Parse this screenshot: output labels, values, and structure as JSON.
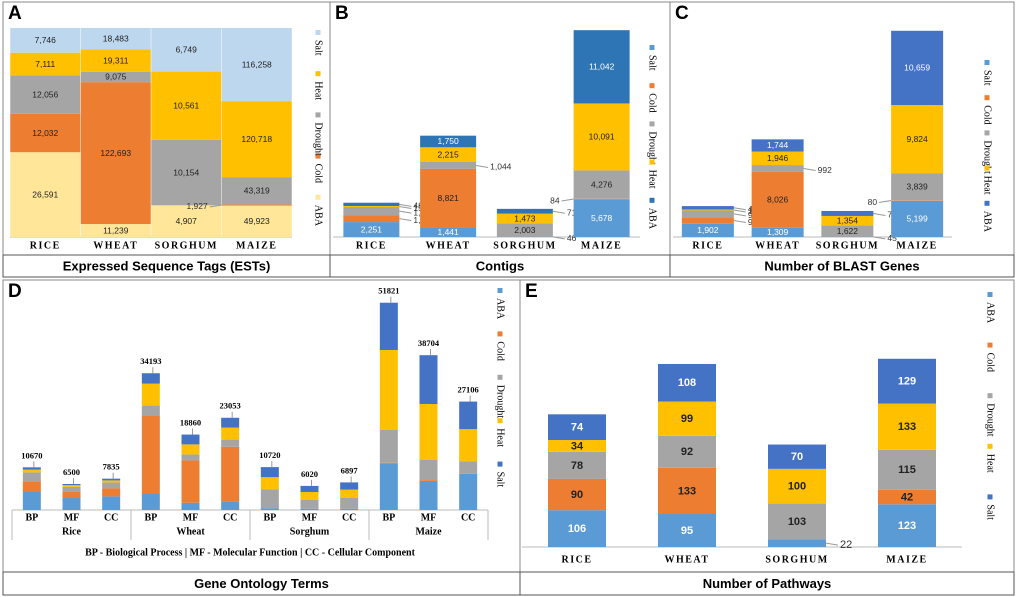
{
  "chart_data": [
    {
      "panel": "A",
      "type": "bar",
      "stacking": "percent",
      "title": "Expressed Sequence Tags (ESTs)",
      "categories": [
        "RICE",
        "WHEAT",
        "SORGHUM",
        "MAIZE"
      ],
      "ylim": [
        0,
        100
      ],
      "series": [
        {
          "name": "ABA",
          "color": "#ffe699",
          "values": [
            26591,
            11239,
            4907,
            49923
          ],
          "value_labels": [
            "26,591",
            "11,239",
            "4,907",
            "49,923"
          ]
        },
        {
          "name": "Cold",
          "color": "#ed7d31",
          "values": [
            12032,
            122693,
            null,
            1927
          ],
          "value_labels": [
            "12,032",
            "122,693",
            null,
            "1,927"
          ]
        },
        {
          "name": "Drought",
          "color": "#a5a5a5",
          "values": [
            12056,
            9075,
            10154,
            43319
          ],
          "value_labels": [
            "12,056",
            "9,075",
            "10,154",
            "43,319"
          ]
        },
        {
          "name": "Heat",
          "color": "#ffc000",
          "values": [
            7111,
            19311,
            10561,
            120718
          ],
          "value_labels": [
            "7,111",
            "19,311",
            "10,561",
            "120,718"
          ]
        },
        {
          "name": "Salt",
          "color": "#bdd7ee",
          "values": [
            7746,
            18483,
            6749,
            116258
          ],
          "value_labels": [
            "7,746",
            "18,483",
            "6,749",
            "116,258"
          ]
        }
      ]
    },
    {
      "panel": "B",
      "type": "bar",
      "stacking": "normal",
      "title": "Contigs",
      "categories": [
        "RICE",
        "WHEAT",
        "SORGHUM",
        "MAIZE"
      ],
      "ylim": [
        0,
        31500
      ],
      "series": [
        {
          "name": "Salt",
          "color": "#5b9bd5",
          "values": [
            2251,
            1441,
            46,
            5678
          ],
          "value_labels": [
            "2,251",
            "1,441",
            "46",
            "5,678"
          ]
        },
        {
          "name": "Cold",
          "color": "#ed7d31",
          "values": [
            1045,
            8821,
            null,
            84
          ],
          "value_labels": [
            "1,045",
            "8,821",
            null,
            "84"
          ]
        },
        {
          "name": "Drought",
          "color": "#a5a5a5",
          "values": [
            1220,
            1044,
            2003,
            4276
          ],
          "value_labels": [
            "1,220",
            "1,044",
            "2,003",
            "4,276"
          ]
        },
        {
          "name": "Heat",
          "color": "#ffc000",
          "values": [
            159,
            2215,
            1473,
            10091
          ],
          "value_labels": [
            "159",
            "2,215",
            "1,473",
            "10,091"
          ]
        },
        {
          "name": "ABA",
          "color": "#2e75b6",
          "values": [
            489,
            1750,
            718,
            11042
          ],
          "value_labels": [
            "489",
            "1,750",
            "718",
            "11,042"
          ]
        }
      ]
    },
    {
      "panel": "C",
      "type": "bar",
      "stacking": "normal",
      "title": "Number of BLAST Genes",
      "categories": [
        "RICE",
        "WHEAT",
        "SORGHUM",
        "MAIZE"
      ],
      "ylim": [
        0,
        30000
      ],
      "series": [
        {
          "name": "Salt",
          "color": "#5b9bd5",
          "values": [
            1902,
            1309,
            45,
            5199
          ],
          "value_labels": [
            "1,902",
            "1,309",
            "45",
            "5,199"
          ]
        },
        {
          "name": "Cold",
          "color": "#ed7d31",
          "values": [
            922,
            8026,
            null,
            80
          ],
          "value_labels": [
            "922",
            "8,026",
            null,
            "80"
          ]
        },
        {
          "name": "Drought",
          "color": "#a5a5a5",
          "values": [
            982,
            992,
            1622,
            3839
          ],
          "value_labels": [
            "982",
            "992",
            "1,622",
            "3,839"
          ]
        },
        {
          "name": "Heat",
          "color": "#ffc000",
          "values": [
            144,
            1946,
            1354,
            9824
          ],
          "value_labels": [
            "144",
            "1,946",
            "1,354",
            "9,824"
          ]
        },
        {
          "name": "ABA",
          "color": "#4472c4",
          "values": [
            487,
            1744,
            715,
            10659
          ],
          "value_labels": [
            "487",
            "1,744",
            "715",
            "10,659"
          ]
        }
      ]
    },
    {
      "panel": "D",
      "type": "bar",
      "stacking": "normal",
      "title": "Gene Ontology Terms",
      "note": "BP - Biological Process | MF - Molecular Function | CC - Cellular Component",
      "categories": [
        "BP",
        "MF",
        "CC",
        "BP",
        "MF",
        "CC",
        "BP",
        "MF",
        "CC",
        "BP",
        "MF",
        "CC"
      ],
      "groups": [
        "Rice",
        "Wheat",
        "Sorghum",
        "Maize"
      ],
      "ylim": [
        0,
        55000
      ],
      "totals": [
        10670,
        6500,
        7835,
        34193,
        18860,
        23053,
        10720,
        6020,
        6897,
        51821,
        38704,
        27106
      ],
      "series": [
        {
          "name": "ABA",
          "color": "#5b9bd5",
          "values": [
            4500,
            3000,
            3400,
            4000,
            1800,
            2200,
            400,
            300,
            300,
            11600,
            7300,
            9100
          ]
        },
        {
          "name": "Cold",
          "color": "#ed7d31",
          "values": [
            2700,
            1600,
            2000,
            19500,
            10600,
            13600,
            null,
            null,
            null,
            200,
            200,
            100
          ]
        },
        {
          "name": "Drought",
          "color": "#a5a5a5",
          "values": [
            2200,
            1200,
            1500,
            2600,
            1500,
            1800,
            4800,
            2200,
            2700,
            8200,
            5000,
            3000
          ]
        },
        {
          "name": "Heat",
          "color": "#ffc000",
          "values": [
            700,
            400,
            500,
            5500,
            2500,
            3000,
            3000,
            2000,
            2100,
            20000,
            14000,
            8000
          ]
        },
        {
          "name": "Salt",
          "color": "#4472c4",
          "values": [
            570,
            300,
            435,
            2593,
            2460,
            2453,
            2520,
            1520,
            1797,
            11821,
            12204,
            6906
          ]
        }
      ]
    },
    {
      "panel": "E",
      "type": "bar",
      "stacking": "normal",
      "title": "Number of Pathways",
      "categories": [
        "RICE",
        "WHEAT",
        "SORGHUM",
        "MAIZE"
      ],
      "ylim": [
        0,
        740
      ],
      "series": [
        {
          "name": "ABA",
          "color": "#5b9bd5",
          "values": [
            106,
            95,
            22,
            123
          ]
        },
        {
          "name": "Cold",
          "color": "#ed7d31",
          "values": [
            90,
            133,
            null,
            42
          ]
        },
        {
          "name": "Drought",
          "color": "#a5a5a5",
          "values": [
            78,
            92,
            103,
            115
          ]
        },
        {
          "name": "Heat",
          "color": "#ffc000",
          "values": [
            34,
            99,
            100,
            133
          ]
        },
        {
          "name": "Salt",
          "color": "#4472c4",
          "values": [
            74,
            108,
            70,
            129
          ]
        }
      ]
    }
  ]
}
